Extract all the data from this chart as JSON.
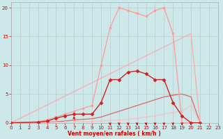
{
  "xlabel": "Vent moyen/en rafales ( km/h )",
  "xlim": [
    0,
    23
  ],
  "ylim": [
    0,
    21
  ],
  "yticks": [
    0,
    5,
    10,
    15,
    20
  ],
  "xticks": [
    0,
    1,
    2,
    3,
    4,
    5,
    6,
    7,
    8,
    9,
    10,
    11,
    12,
    13,
    14,
    15,
    16,
    17,
    18,
    19,
    20,
    21,
    22,
    23
  ],
  "background_color": "#cce8e8",
  "grid_color": "#bbcccc",
  "lines": [
    {
      "x": [
        0,
        20,
        21
      ],
      "y": [
        0,
        15.5,
        0
      ],
      "color": "#ffaaaa",
      "linewidth": 0.9,
      "marker": null,
      "markersize": 0,
      "zorder": 2
    },
    {
      "x": [
        0,
        3,
        4,
        5,
        6,
        7,
        8,
        9,
        10,
        11,
        12,
        13,
        14,
        15,
        16,
        17,
        18,
        19,
        20,
        21
      ],
      "y": [
        0,
        0.2,
        0.5,
        1.0,
        1.5,
        2.0,
        2.5,
        3.0,
        10.0,
        16.5,
        20.0,
        19.5,
        19.0,
        18.5,
        19.5,
        20.0,
        15.5,
        0,
        0,
        0
      ],
      "color": "#ff9999",
      "linewidth": 0.9,
      "marker": "o",
      "markersize": 2.0,
      "zorder": 3
    },
    {
      "x": [
        0,
        3,
        4,
        5,
        6,
        7,
        8,
        9,
        10,
        11,
        12,
        13,
        14,
        15,
        16,
        17,
        18,
        19,
        20,
        21
      ],
      "y": [
        0,
        0.1,
        0.3,
        0.8,
        1.2,
        1.5,
        1.5,
        1.5,
        3.5,
        7.5,
        7.5,
        8.8,
        9.0,
        8.5,
        7.5,
        7.5,
        3.5,
        1.2,
        0,
        0
      ],
      "color": "#cc2222",
      "linewidth": 1.0,
      "marker": "D",
      "markersize": 2.5,
      "zorder": 4
    },
    {
      "x": [
        0,
        3,
        4,
        5,
        6,
        7,
        8,
        9,
        10,
        11,
        12,
        13,
        14,
        15,
        16,
        17,
        18,
        19,
        20,
        21
      ],
      "y": [
        0,
        0.05,
        0.1,
        0.2,
        0.3,
        0.5,
        0.6,
        0.7,
        1.0,
        1.5,
        2.0,
        2.5,
        3.0,
        3.5,
        4.0,
        4.5,
        4.8,
        5.0,
        4.5,
        0
      ],
      "color": "#dd6666",
      "linewidth": 0.9,
      "marker": null,
      "markersize": 0,
      "zorder": 2
    },
    {
      "x": [
        0,
        3,
        4,
        5,
        6,
        7,
        8,
        9,
        10,
        11,
        12,
        13,
        14,
        15,
        16,
        17,
        18,
        19,
        20,
        21
      ],
      "y": [
        0,
        0.02,
        0.05,
        0.1,
        0.15,
        0.2,
        0.2,
        0.25,
        0.3,
        0.4,
        0.5,
        0.6,
        0.8,
        1.0,
        1.2,
        1.5,
        1.8,
        2.0,
        3.0,
        0
      ],
      "color": "#ffbbbb",
      "linewidth": 0.8,
      "marker": "o",
      "markersize": 1.5,
      "zorder": 2
    }
  ],
  "down_arrows": [
    11,
    12,
    13,
    14,
    15,
    16,
    17,
    18,
    19,
    20
  ],
  "up_arrows": [
    7
  ],
  "arrow_color": "#cc0000"
}
